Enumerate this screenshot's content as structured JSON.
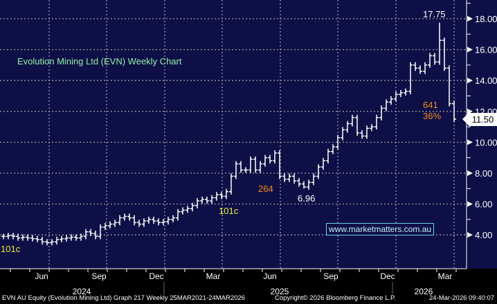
{
  "chart_data": {
    "type": "ohlc-weekly",
    "title": "Evolution Mining Ltd (EVN) Weekly Chart",
    "ylim": [
      2,
      19.2
    ],
    "yticks": [
      "4.00",
      "6.00",
      "8.00",
      "10.00",
      "12.00",
      "14.00",
      "16.00",
      "18.00"
    ],
    "ytick_values": [
      4,
      6,
      8,
      10,
      12,
      14,
      16,
      18
    ],
    "months": [
      "Jun",
      "Sep",
      "Dec",
      "Mar",
      "Jun",
      "Sep",
      "Dec",
      "Mar"
    ],
    "years": [
      "2024",
      "2025",
      "2026"
    ],
    "closes": [
      3.9,
      3.95,
      3.9,
      3.8,
      3.85,
      3.8,
      3.75,
      3.7,
      3.55,
      3.5,
      3.55,
      3.7,
      3.75,
      3.8,
      3.85,
      3.8,
      3.9,
      4.2,
      4.1,
      3.9,
      4.5,
      4.6,
      4.7,
      4.8,
      5.1,
      5.2,
      5.1,
      4.8,
      4.7,
      4.9,
      5.0,
      4.9,
      4.8,
      4.85,
      5.0,
      5.1,
      5.5,
      5.6,
      5.7,
      5.9,
      6.2,
      6.3,
      6.2,
      6.4,
      6.6,
      6.5,
      6.8,
      7.8,
      8.6,
      8.2,
      8.2,
      8.9,
      8.2,
      8.6,
      9.0,
      8.8,
      9.3,
      7.8,
      7.6,
      7.8,
      7.5,
      7.3,
      7.1,
      7.4,
      7.8,
      8.4,
      8.8,
      9.4,
      9.7,
      10.3,
      10.8,
      11.2,
      11.6,
      10.6,
      10.4,
      10.9,
      11.0,
      11.6,
      12.2,
      12.6,
      12.8,
      13.1,
      13.2,
      13.3,
      15.0,
      14.8,
      14.6,
      15.0,
      15.6,
      15.2,
      16.6,
      14.8,
      12.5,
      11.5
    ],
    "last_price": "11.50",
    "annotations": {
      "low_start": "101c",
      "low_2025": "101c",
      "rise_1": "264",
      "pullback_low": "6.96",
      "peak": "17.75",
      "drop_cents": "641",
      "drop_pct": "36%"
    }
  },
  "watermark": "www.marketmatters.com.au",
  "footer": {
    "left": "EVN AU Equity (Evolution Mining Ltd) Graph 217 Weekly 25MAR2021-24MAR2026",
    "center": "Copyright© 2026 Bloomberg Finance L.P.",
    "right": "24-Mar-2026 09:40:07"
  },
  "colors": {
    "background": "#0f0f47",
    "bars": "#ffffff",
    "annotation_yellow": "#e8f03a",
    "annotation_orange": "#f08a1c",
    "title": "#8ef0a8"
  }
}
